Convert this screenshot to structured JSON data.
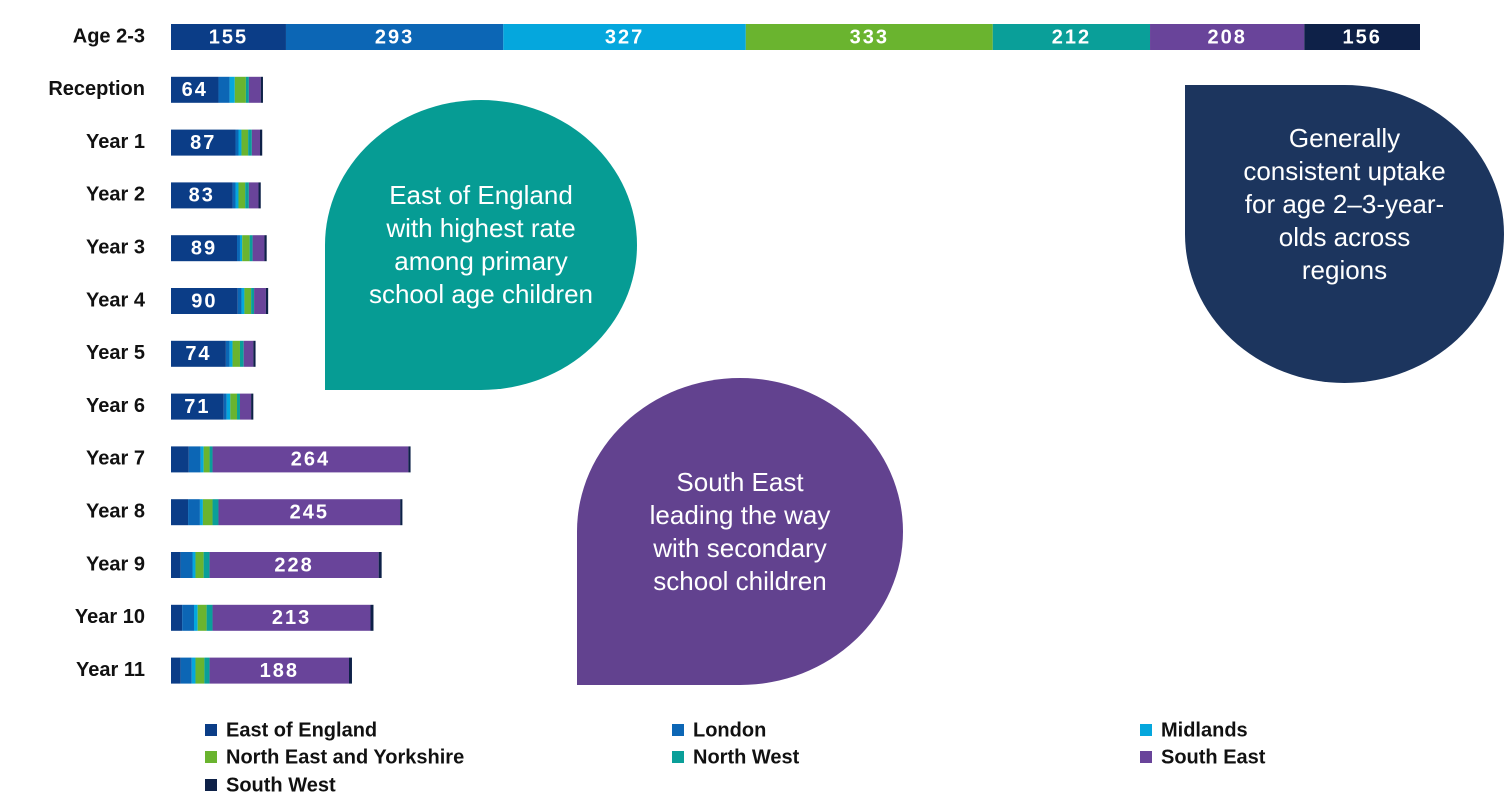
{
  "chart_data": {
    "type": "stacked-bar-horizontal",
    "categories": [
      "Age 2-3",
      "Reception",
      "Year 1",
      "Year 2",
      "Year 3",
      "Year 4",
      "Year 5",
      "Year 6",
      "Year 7",
      "Year 8",
      "Year 9",
      "Year 10",
      "Year 11"
    ],
    "series": [
      {
        "name": "East of England",
        "color": "#0b3d87",
        "values": [
          155,
          64,
          87,
          83,
          89,
          90,
          74,
          71,
          24,
          23,
          13,
          15,
          13
        ]
      },
      {
        "name": "London",
        "color": "#0c66b5",
        "values": [
          293,
          15,
          4,
          4,
          4,
          5,
          5,
          4,
          16,
          16,
          16,
          16,
          15
        ]
      },
      {
        "name": "Midlands",
        "color": "#05a7dd",
        "values": [
          327,
          7,
          4,
          4,
          3,
          4,
          4,
          5,
          4,
          4,
          4,
          5,
          5
        ]
      },
      {
        "name": "North East and Yorkshire",
        "color": "#6ab42f",
        "values": [
          333,
          15,
          9,
          9,
          10,
          9,
          10,
          9,
          8,
          13,
          11,
          12,
          12
        ]
      },
      {
        "name": "North West",
        "color": "#0a9f99",
        "values": [
          212,
          4,
          5,
          5,
          4,
          4,
          5,
          4,
          4,
          8,
          8,
          8,
          7
        ]
      },
      {
        "name": "South East",
        "color": "#69449a",
        "values": [
          208,
          16,
          11,
          13,
          16,
          16,
          13,
          15,
          264,
          245,
          228,
          213,
          188
        ]
      },
      {
        "name": "South West",
        "color": "#0e2148",
        "values": [
          156,
          3,
          3,
          3,
          3,
          3,
          3,
          3,
          3,
          3,
          4,
          4,
          4
        ]
      }
    ],
    "annotations": [
      {
        "text": "East of England with highest rate among primary school age children",
        "color": "#069c94"
      },
      {
        "text": "South East leading the way with secondary school children",
        "color": "#62428f"
      },
      {
        "text": "Generally consistent uptake for age 2–3-year-olds across regions",
        "color": "#1c355e"
      }
    ]
  }
}
